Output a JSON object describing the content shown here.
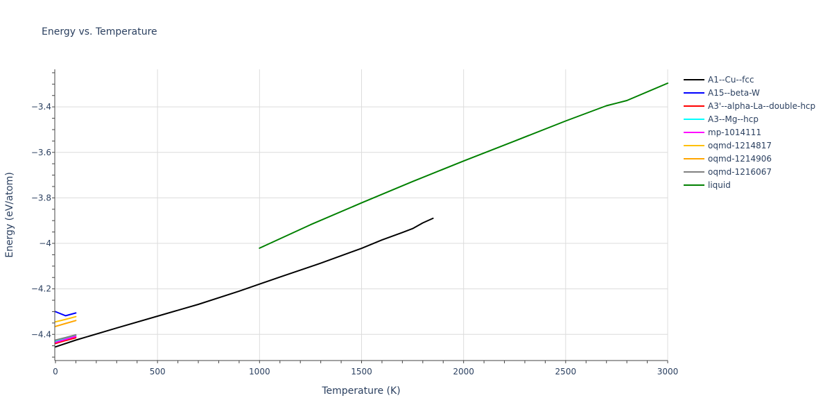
{
  "chart_data": {
    "type": "line",
    "title": "Energy vs. Temperature",
    "xlabel": "Temperature (K)",
    "ylabel": "Energy (eV/atom)",
    "xlim": [
      0,
      3000
    ],
    "ylim": [
      -4.515,
      -3.235
    ],
    "x_ticks": [
      0,
      500,
      1000,
      1500,
      2000,
      2500,
      3000
    ],
    "x_tick_labels": [
      "0",
      "500",
      "1000",
      "1500",
      "2000",
      "2500",
      "3000"
    ],
    "y_ticks": [
      -4.4,
      -4.2,
      -4.0,
      -3.8,
      -3.6,
      -3.4
    ],
    "y_tick_labels": [
      "−4.4",
      "−4.2",
      "−4",
      "−3.8",
      "−3.6",
      "−3.4"
    ],
    "grid": true,
    "legend_position": "right",
    "series": [
      {
        "name": "A1--Cu--fcc",
        "color": "#000000",
        "x": [
          0,
          100,
          300,
          500,
          700,
          900,
          1100,
          1300,
          1500,
          1600,
          1700,
          1750,
          1800,
          1850
        ],
        "y": [
          -4.455,
          -4.425,
          -4.372,
          -4.32,
          -4.268,
          -4.21,
          -4.148,
          -4.087,
          -4.022,
          -3.985,
          -3.952,
          -3.935,
          -3.91,
          -3.89
        ]
      },
      {
        "name": "A15--beta-W",
        "color": "#0000ff",
        "x": [
          0,
          50,
          100
        ],
        "y": [
          -4.3,
          -4.318,
          -4.306
        ]
      },
      {
        "name": "A3'--alpha-La--double-hcp",
        "color": "#ff0000",
        "x": [
          0,
          50,
          100
        ],
        "y": [
          -4.44,
          -4.427,
          -4.415
        ]
      },
      {
        "name": "A3--Mg--hcp",
        "color": "#00ffff",
        "x": [
          0,
          50,
          100
        ],
        "y": [
          -4.43,
          -4.417,
          -4.404
        ]
      },
      {
        "name": "mp-1014111",
        "color": "#ff00ff",
        "x": [
          0,
          50,
          100
        ],
        "y": [
          -4.435,
          -4.422,
          -4.409
        ]
      },
      {
        "name": "oqmd-1214817",
        "color": "#ffc000",
        "x": [
          0,
          50,
          100
        ],
        "y": [
          -4.345,
          -4.334,
          -4.322
        ]
      },
      {
        "name": "oqmd-1214906",
        "color": "#ffa500",
        "x": [
          0,
          50,
          100
        ],
        "y": [
          -4.365,
          -4.352,
          -4.339
        ]
      },
      {
        "name": "oqmd-1216067",
        "color": "#808080",
        "x": [
          0,
          50,
          100
        ],
        "y": [
          -4.425,
          -4.414,
          -4.402
        ]
      },
      {
        "name": "liquid",
        "color": "#008000",
        "x": [
          1000,
          1250,
          1500,
          1750,
          2000,
          2250,
          2500,
          2700,
          2800,
          3000
        ],
        "y": [
          -4.021,
          -3.918,
          -3.822,
          -3.728,
          -3.638,
          -3.55,
          -3.462,
          -3.395,
          -3.372,
          -3.296
        ]
      }
    ]
  }
}
